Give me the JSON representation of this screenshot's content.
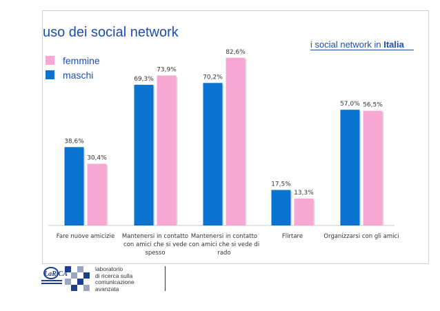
{
  "slide": {
    "title": "uso dei social network",
    "subtitle_prefix": "i social network  in ",
    "subtitle_bold": "Italia"
  },
  "legend": [
    {
      "label": "femmine",
      "color": "#f9a8d4"
    },
    {
      "label": "maschi",
      "color": "#0a72cf"
    }
  ],
  "chart_data": {
    "type": "bar",
    "categories": [
      [
        "Fare nuove amicizie"
      ],
      [
        "Mantenersi in contatto",
        "con amici che si vede",
        "spesso"
      ],
      [
        "Mantenersi in contatto",
        "con amici che si vede di",
        "rado"
      ],
      [
        "Flirtare"
      ],
      [
        "Organizzarsi con gli amici"
      ]
    ],
    "series": [
      {
        "name": "maschi",
        "color": "#0a72cf",
        "values": [
          38.6,
          69.3,
          70.2,
          17.5,
          57.0
        ],
        "labels": [
          "38,6%",
          "69,3%",
          "70,2%",
          "17,5%",
          "57,0%"
        ]
      },
      {
        "name": "femmine",
        "color": "#f9a8d4",
        "values": [
          30.4,
          73.9,
          82.6,
          13.3,
          56.5
        ],
        "labels": [
          "30,4%",
          "73,9%",
          "82,6%",
          "13,3%",
          "56,5%"
        ]
      }
    ],
    "ylim": [
      0,
      90
    ],
    "grid": false,
    "legend_position": "top-left"
  },
  "footer": {
    "logo_text": "LaRiCA",
    "lines": [
      "laboratorio",
      "di ricerca sulla",
      "comunicazione",
      "avanzata"
    ]
  }
}
